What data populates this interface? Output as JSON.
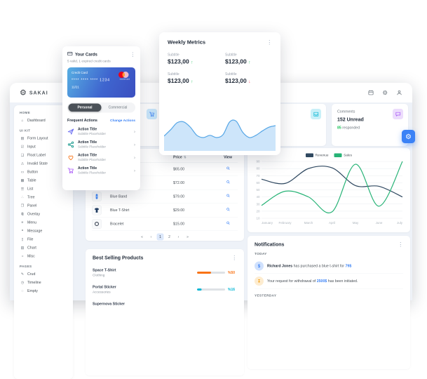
{
  "topbar": {
    "logo_text": "SAKAI",
    "icons": [
      "calendar-icon",
      "settings-icon",
      "profile-icon"
    ]
  },
  "sidebar": {
    "sections": [
      {
        "label": "HOME",
        "items": [
          {
            "label": "Dashboard",
            "icon": "home-icon",
            "glyph": "⌂"
          }
        ]
      },
      {
        "label": "UI KIT",
        "items": [
          {
            "label": "Form Layout",
            "icon": "form-layout-icon",
            "glyph": "▤"
          },
          {
            "label": "Input",
            "icon": "input-icon",
            "glyph": "☑"
          },
          {
            "label": "Float Label",
            "icon": "float-label-icon",
            "glyph": "❏"
          },
          {
            "label": "Invalid State",
            "icon": "invalid-state-icon",
            "glyph": "⚠"
          },
          {
            "label": "Button",
            "icon": "button-icon",
            "glyph": "▭"
          },
          {
            "label": "Table",
            "icon": "table-icon",
            "glyph": "▦"
          },
          {
            "label": "List",
            "icon": "list-icon",
            "glyph": "☰"
          },
          {
            "label": "Tree",
            "icon": "tree-icon",
            "glyph": "∴"
          },
          {
            "label": "Panel",
            "icon": "panel-icon",
            "glyph": "❐"
          },
          {
            "label": "Overlay",
            "icon": "overlay-icon",
            "glyph": "⧉"
          },
          {
            "label": "Menu",
            "icon": "menu-icon",
            "glyph": "≡"
          },
          {
            "label": "Message",
            "icon": "message-icon",
            "glyph": "❝"
          },
          {
            "label": "File",
            "icon": "file-icon",
            "glyph": "▯"
          },
          {
            "label": "Chart",
            "icon": "chart-icon",
            "glyph": "▥"
          },
          {
            "label": "Misc",
            "icon": "misc-icon",
            "glyph": "○"
          }
        ]
      },
      {
        "label": "PAGES",
        "items": [
          {
            "label": "Crud",
            "icon": "crud-icon",
            "glyph": "✎"
          },
          {
            "label": "Timeline",
            "icon": "timeline-icon",
            "glyph": "◷"
          },
          {
            "label": "Empty",
            "icon": "empty-icon",
            "glyph": "◌"
          }
        ]
      }
    ]
  },
  "stats": {
    "cards": [
      {
        "title": "",
        "value": "",
        "icon": "cart-icon",
        "icon_bg": "#cbe9fd",
        "icon_color": "#3b82f6"
      },
      {
        "title": "",
        "value": "",
        "icon": "",
        "icon_bg": "",
        "icon_color": ""
      },
      {
        "title": "",
        "value": "",
        "icon": "inbox-icon",
        "icon_bg": "#c9f0f8",
        "icon_color": "#06b6d4"
      },
      {
        "title": "Comments",
        "value": "152 Unread",
        "highlight": "85",
        "suffix": " responded",
        "highlight_color": "#22c55e",
        "icon": "chat-icon",
        "icon_bg": "#ecdcfc",
        "icon_color": "#a855f7"
      }
    ]
  },
  "sales_table": {
    "headers": {
      "price": "Price",
      "view": "View",
      "sort_icon": "⇅"
    },
    "rows": [
      {
        "name": "",
        "image": "",
        "price": "$65.00"
      },
      {
        "name": "",
        "image": "",
        "price": "$72.00"
      },
      {
        "name": "Blue Band",
        "image": "band",
        "price": "$79.00"
      },
      {
        "name": "Blue T-Shirt",
        "image": "tshirt",
        "price": "$29.00"
      },
      {
        "name": "Bracelet",
        "image": "ring",
        "price": "$15.00"
      }
    ],
    "view_icon": "search-icon",
    "pagination": [
      {
        "label": "«",
        "active": false
      },
      {
        "label": "‹",
        "active": false
      },
      {
        "label": "1",
        "active": true
      },
      {
        "label": "2",
        "active": false
      },
      {
        "label": "›",
        "active": false
      },
      {
        "label": "»",
        "active": false
      }
    ]
  },
  "chart_data": [
    {
      "id": "revenue-stream",
      "type": "line",
      "x": [
        "January",
        "February",
        "March",
        "April",
        "May",
        "June",
        "July"
      ],
      "series": [
        {
          "name": "Revenue",
          "color": "#2f4860",
          "values": [
            65,
            59,
            80,
            81,
            56,
            55,
            40
          ]
        },
        {
          "name": "Sales",
          "color": "#27b376",
          "values": [
            28,
            48,
            40,
            19,
            86,
            27,
            90
          ]
        }
      ],
      "ylim": [
        10,
        90
      ],
      "ytick": 10,
      "grid": true,
      "legend_position": "top"
    },
    {
      "id": "weekly-metrics-trend",
      "type": "area",
      "values": [
        38,
        55,
        74,
        76,
        62,
        40,
        34,
        40,
        34,
        42,
        76,
        78,
        48,
        34,
        40,
        52,
        62,
        66
      ],
      "color": "#55a6e6",
      "fill": "#cde5fa",
      "ylim": [
        0,
        100
      ]
    }
  ],
  "notifications": {
    "title": "Notifications",
    "groups": [
      {
        "label": "TODAY",
        "items": [
          {
            "avatar_icon": "dollar-icon",
            "avatar_bg": "#d0e1fd",
            "avatar_color": "#3b82f6",
            "segments": [
              {
                "t": "Richard Jones",
                "s": "b"
              },
              {
                "t": " has purchased a blue t-shirt for ",
                "s": ""
              },
              {
                "t": "79$",
                "s": "l"
              }
            ]
          },
          {
            "avatar_icon": "download-icon",
            "avatar_bg": "#fdecd0",
            "avatar_color": "#f59e0b",
            "segments": [
              {
                "t": "Your request for withdrawal of ",
                "s": ""
              },
              {
                "t": "2500$",
                "s": "l"
              },
              {
                "t": " has been initiated.",
                "s": ""
              }
            ]
          }
        ]
      },
      {
        "label": "YESTERDAY",
        "items": []
      }
    ]
  },
  "best_selling": {
    "title": "Best Selling Products",
    "items": [
      {
        "name": "Space T-Shirt",
        "category": "Clothing",
        "percent": 50,
        "display": "%50",
        "color": "#f97316"
      },
      {
        "name": "Portal Sticker",
        "category": "Accessories",
        "percent": 16,
        "display": "%16",
        "color": "#06b6d4"
      },
      {
        "name": "Supernova Sticker",
        "category": "",
        "percent": 0,
        "display": "",
        "color": "#ec4899"
      }
    ]
  },
  "overlays": {
    "your_cards": {
      "title": "Your Cards",
      "subtitle": "5 valid, 1 expired credit cards",
      "header_icon": "credit-card-icon",
      "credit_card": {
        "label": "Credit Card",
        "number": "**** **** **** 1234",
        "expiry": "11/21",
        "brand": "mastercard"
      },
      "tabs": [
        {
          "label": "Personal",
          "active": true
        },
        {
          "label": "Commercial",
          "active": false
        }
      ],
      "frequent_actions_label": "Frequent Actions",
      "change_actions_label": "Change Actions",
      "actions": [
        {
          "icon": "send-icon",
          "color": "#6366f1",
          "title": "Action Title",
          "subtitle": "Subtitle Placeholder"
        },
        {
          "icon": "share-icon",
          "color": "#0d9488",
          "title": "Action Title",
          "subtitle": "Subtitle Placeholder"
        },
        {
          "icon": "heart-icon",
          "color": "#f97316",
          "title": "Action Title",
          "subtitle": "Subtitle Placeholder"
        },
        {
          "icon": "cart-icon",
          "color": "#a855f7",
          "title": "Action Title",
          "subtitle": "Subtitle Placeholder"
        }
      ]
    },
    "weekly_metrics": {
      "title": "Weekly Metrics",
      "metrics": [
        {
          "label": "Subtitle",
          "value": "$123,00",
          "trend": "up"
        },
        {
          "label": "Subtitle",
          "value": "$123,00",
          "trend": "up"
        },
        {
          "label": "Subtitle",
          "value": "$123,00",
          "trend": "up"
        },
        {
          "label": "Subtitle",
          "value": "$123,00",
          "trend": "down"
        }
      ]
    }
  },
  "colors": {
    "accent": "#3b82f6",
    "up": "#22c55e",
    "down": "#f43f5e"
  }
}
